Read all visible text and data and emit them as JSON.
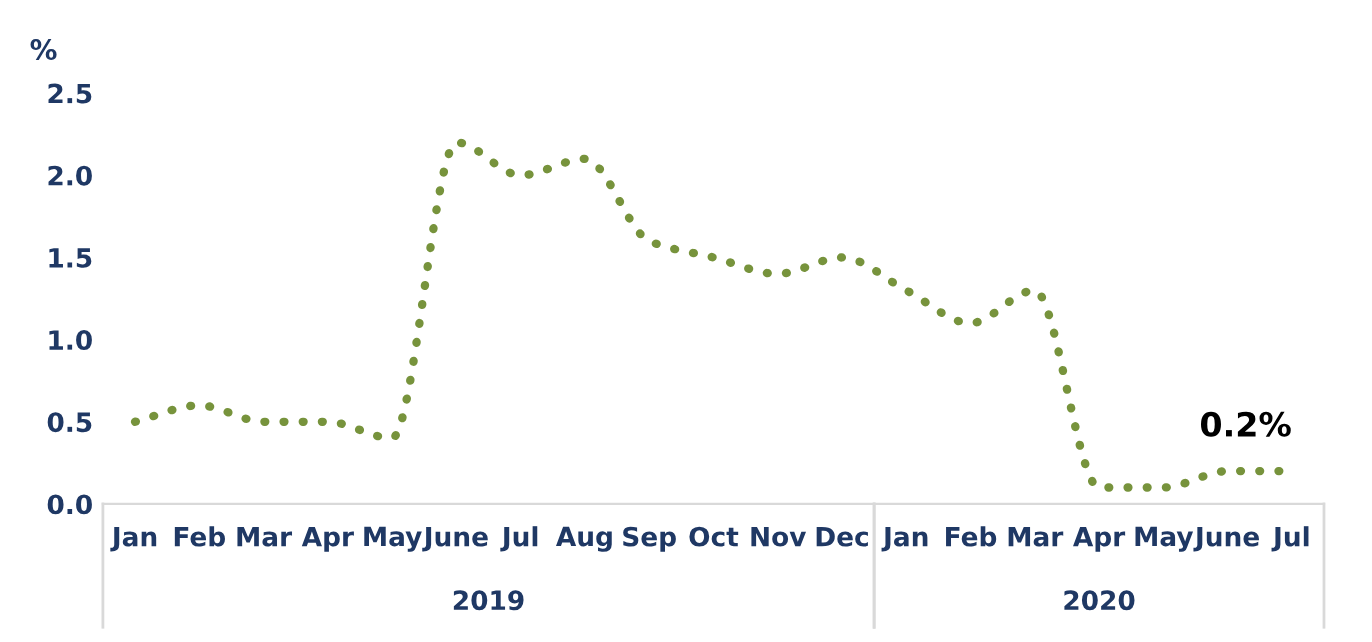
{
  "chart_data": {
    "type": "line",
    "ylabel": "%",
    "x": [
      "2019-01",
      "2019-02",
      "2019-03",
      "2019-04",
      "2019-05",
      "2019-06",
      "2019-07",
      "2019-08",
      "2019-09",
      "2019-10",
      "2019-11",
      "2019-12",
      "2020-01",
      "2020-02",
      "2020-03",
      "2020-04",
      "2020-05",
      "2020-06",
      "2020-07"
    ],
    "xticks": [
      {
        "value": "2019-01",
        "label": "Jan"
      },
      {
        "value": "2019-02",
        "label": "Feb"
      },
      {
        "value": "2019-03",
        "label": "Mar"
      },
      {
        "value": "2019-04",
        "label": "Apr"
      },
      {
        "value": "2019-05",
        "label": "May"
      },
      {
        "value": "2019-06",
        "label": "June"
      },
      {
        "value": "2019-07",
        "label": "Jul"
      },
      {
        "value": "2019-08",
        "label": "Aug"
      },
      {
        "value": "2019-09",
        "label": "Sep"
      },
      {
        "value": "2019-10",
        "label": "Oct"
      },
      {
        "value": "2019-11",
        "label": "Nov"
      },
      {
        "value": "2019-12",
        "label": "Dec"
      },
      {
        "value": "2020-01",
        "label": "Jan"
      },
      {
        "value": "2020-02",
        "label": "Feb"
      },
      {
        "value": "2020-03",
        "label": "Mar"
      },
      {
        "value": "2020-04",
        "label": "Apr"
      },
      {
        "value": "2020-05",
        "label": "May"
      },
      {
        "value": "2020-06",
        "label": "June"
      },
      {
        "value": "2020-07",
        "label": "Jul"
      }
    ],
    "annotations": [
      "2019",
      "2020"
    ],
    "series": [
      {
        "color": "#77933c",
        "values": [
          0.5,
          0.6,
          0.5,
          0.5,
          0.4,
          2.2,
          2.0,
          2.1,
          1.6,
          1.5,
          1.4,
          1.5,
          1.3,
          1.1,
          1.3,
          0.1,
          0.1,
          0.2,
          0.2
        ],
        "value_labels": [
          null,
          null,
          null,
          null,
          null,
          null,
          null,
          null,
          null,
          null,
          null,
          null,
          null,
          null,
          null,
          null,
          null,
          null,
          "0.2%"
        ]
      }
    ],
    "xlim": [
      "2018-12-16",
      "2020-07-16"
    ],
    "ylim": [
      0,
      2.5
    ],
    "yticks": [
      {
        "value": 0,
        "label": "0.0"
      },
      {
        "value": 0.5,
        "label": "0.5"
      },
      {
        "value": 1,
        "label": "1.0"
      },
      {
        "value": 1.5,
        "label": "1.5"
      },
      {
        "value": 2,
        "label": "2.0"
      },
      {
        "value": 2.5,
        "label": "2.5"
      }
    ],
    "grid": false,
    "line_style": "dotted",
    "marker": "none",
    "legend": false
  }
}
